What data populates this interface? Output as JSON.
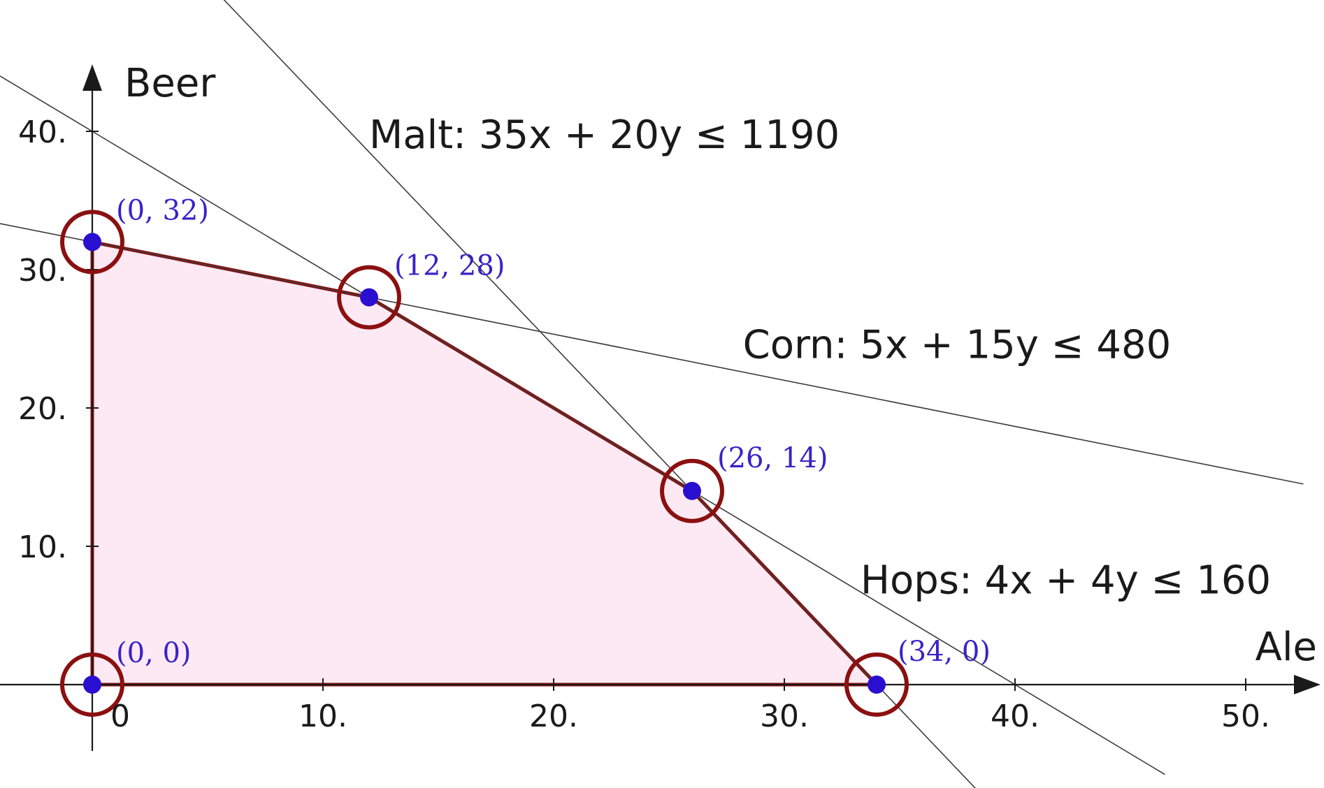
{
  "chart_data": {
    "type": "line",
    "xlabel": "Ale",
    "ylabel": "Beer",
    "xlim": [
      -4,
      53
    ],
    "ylim": [
      -5,
      45
    ],
    "x_ticks": [
      {
        "value": 0,
        "label": "0"
      },
      {
        "value": 10,
        "label": "10."
      },
      {
        "value": 20,
        "label": "20."
      },
      {
        "value": 30,
        "label": "30."
      },
      {
        "value": 40,
        "label": "40."
      },
      {
        "value": 50,
        "label": "50."
      }
    ],
    "y_ticks": [
      {
        "value": 10,
        "label": "10."
      },
      {
        "value": 20,
        "label": "20."
      },
      {
        "value": 30,
        "label": "30."
      },
      {
        "value": 40,
        "label": "40."
      }
    ],
    "grid": false,
    "constraints": [
      {
        "name": "Malt",
        "label": "Malt:  35x + 20y ≤ 1190",
        "a": 35,
        "b": 20,
        "c": 1190,
        "label_at": [
          12,
          38.8
        ]
      },
      {
        "name": "Corn",
        "label": "Corn:  5x + 15y ≤ 480",
        "a": 5,
        "b": 15,
        "c": 480,
        "label_at": [
          28.2,
          23.6
        ]
      },
      {
        "name": "Hops",
        "label": "Hops:  4x + 4y ≤ 160",
        "a": 4,
        "b": 4,
        "c": 160,
        "label_at": [
          33.3,
          6.6
        ]
      }
    ],
    "feasible_region": {
      "vertices": [
        {
          "x": 0,
          "y": 0,
          "label": "(0, 0)"
        },
        {
          "x": 0,
          "y": 32,
          "label": "(0, 32)"
        },
        {
          "x": 12,
          "y": 28,
          "label": "(12, 28)"
        },
        {
          "x": 26,
          "y": 14,
          "label": "(26, 14)"
        },
        {
          "x": 34,
          "y": 0,
          "label": "(34, 0)"
        }
      ],
      "fill": "#fde9f3",
      "edge_color": "#8b1010",
      "point_color": "#2a0fd0"
    }
  }
}
